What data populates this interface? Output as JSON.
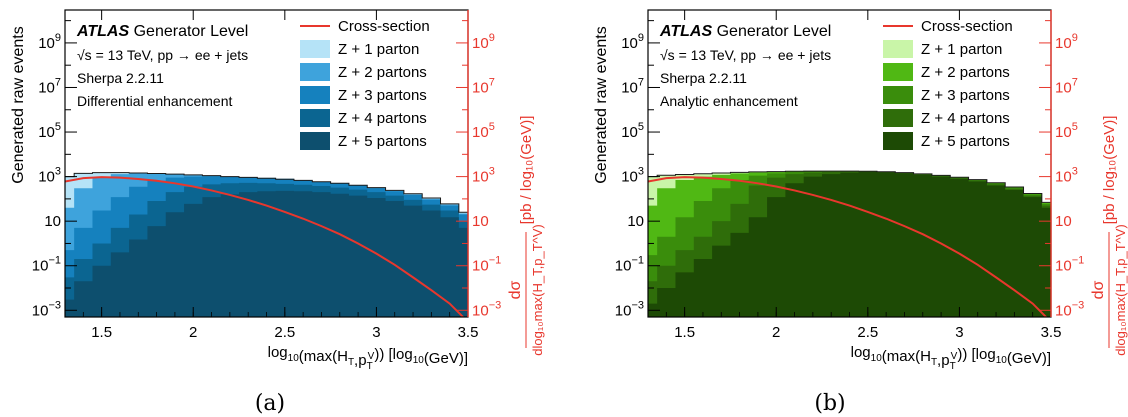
{
  "caption_a": "(a)",
  "caption_b": "(b)",
  "chart_data": [
    {
      "type": "area",
      "y_scale": "log",
      "xlim": [
        1.3,
        3.5
      ],
      "ylim_left": [
        0.0005,
        30000000000
      ],
      "ylim_right": [
        0.0005,
        30000000000
      ],
      "xlabel": "log₁₀(max(H_T,p_T^V)) [log₁₀(GeV)]",
      "ylabel": "Generated raw events",
      "ylabel_right": "dσ / dlog₁₀ max(H_T,p_T^V) [pb / log₁₀(GeV)]",
      "x_ticks": [
        "1.5",
        "2",
        "2.5",
        "3",
        "3.5"
      ],
      "y_ticks": [
        "10⁻³",
        "10⁻¹",
        "10",
        "10³",
        "10⁵",
        "10⁷",
        "10⁹"
      ],
      "y_ticks_right": [
        "10⁻³",
        "10⁻¹",
        "10",
        "10³",
        "10⁵",
        "10⁷",
        "10⁹"
      ],
      "annotation": {
        "experiment": "ATLAS",
        "level": "Generator Level",
        "energy": "√s = 13 TeV, pp → ee + jets",
        "generator": "Sherpa 2.2.11",
        "method": "Differential enhancement"
      },
      "legend_position": "top-right",
      "x": [
        1.3,
        1.4,
        1.5,
        1.6,
        1.7,
        1.8,
        1.9,
        2.0,
        2.1,
        2.2,
        2.3,
        2.4,
        2.5,
        2.6,
        2.7,
        2.8,
        2.9,
        3.0,
        3.1,
        3.2,
        3.3,
        3.4,
        3.5
      ],
      "cross_section": {
        "name": "Cross-section",
        "color": "#e8372d",
        "values": [
          600,
          850,
          950,
          900,
          780,
          650,
          500,
          360,
          240,
          150,
          90,
          50,
          26,
          13,
          6,
          2.6,
          1.0,
          0.35,
          0.11,
          0.03,
          0.008,
          0.002,
          0.0003
        ]
      },
      "series": [
        {
          "name": "Z + 5 partons",
          "color": "#0d4f6e",
          "values": [
            0.003,
            0.02,
            0.1,
            0.4,
            1.5,
            6,
            25,
            60,
            120,
            160,
            200,
            220,
            230,
            220,
            200,
            170,
            140,
            110,
            80,
            50,
            30,
            15,
            5
          ]
        },
        {
          "name": "Z + 4 partons",
          "color": "#0b6591",
          "values": [
            0.03,
            0.2,
            1,
            5,
            20,
            80,
            200,
            350,
            450,
            500,
            520,
            500,
            470,
            430,
            380,
            320,
            260,
            200,
            140,
            90,
            55,
            30,
            10
          ]
        },
        {
          "name": "Z + 3 partons",
          "color": "#1581be",
          "values": [
            0.5,
            5,
            30,
            120,
            350,
            650,
            900,
            1000,
            1050,
            1020,
            950,
            880,
            800,
            700,
            600,
            500,
            400,
            300,
            220,
            150,
            90,
            50,
            20
          ]
        },
        {
          "name": "Z + 2 partons",
          "color": "#3ea3dc",
          "values": [
            40,
            300,
            900,
            1300,
            1400,
            1350,
            1250,
            1150,
            1050,
            950,
            870,
            800,
            720,
            640,
            560,
            480,
            400,
            310,
            230,
            160,
            100,
            55,
            22
          ]
        },
        {
          "name": "Z + 1 parton",
          "color": "#b5e3f7",
          "values": [
            1000,
            1400,
            1500,
            1500,
            1450,
            1380,
            1300,
            1200,
            1100,
            1000,
            920,
            840,
            760,
            680,
            590,
            500,
            410,
            320,
            240,
            170,
            110,
            60,
            25
          ]
        }
      ]
    },
    {
      "type": "area",
      "y_scale": "log",
      "xlim": [
        1.3,
        3.5
      ],
      "ylim_left": [
        0.0005,
        30000000000
      ],
      "ylim_right": [
        0.0005,
        30000000000
      ],
      "xlabel": "log₁₀(max(H_T,p_T^V)) [log₁₀(GeV)]",
      "ylabel": "Generated raw events",
      "ylabel_right": "dσ / dlog₁₀ max(H_T,p_T^V) [pb / log₁₀(GeV)]",
      "x_ticks": [
        "1.5",
        "2",
        "2.5",
        "3",
        "3.5"
      ],
      "y_ticks": [
        "10⁻³",
        "10⁻¹",
        "10",
        "10³",
        "10⁵",
        "10⁷",
        "10⁹"
      ],
      "y_ticks_right": [
        "10⁻³",
        "10⁻¹",
        "10",
        "10³",
        "10⁵",
        "10⁷",
        "10⁹"
      ],
      "annotation": {
        "experiment": "ATLAS",
        "level": "Generator Level",
        "energy": "√s = 13 TeV, pp → ee + jets",
        "generator": "Sherpa 2.2.11",
        "method": "Analytic enhancement"
      },
      "legend_position": "top-right",
      "x": [
        1.3,
        1.4,
        1.5,
        1.6,
        1.7,
        1.8,
        1.9,
        2.0,
        2.1,
        2.2,
        2.3,
        2.4,
        2.5,
        2.6,
        2.7,
        2.8,
        2.9,
        3.0,
        3.1,
        3.2,
        3.3,
        3.4,
        3.5
      ],
      "cross_section": {
        "name": "Cross-section",
        "color": "#e8372d",
        "values": [
          600,
          850,
          950,
          900,
          780,
          650,
          500,
          360,
          240,
          150,
          90,
          50,
          26,
          13,
          6,
          2.6,
          1.0,
          0.35,
          0.11,
          0.03,
          0.008,
          0.002,
          0.0003
        ]
      },
      "series": [
        {
          "name": "Z + 5 partons",
          "color": "#1d4a05",
          "values": [
            0.002,
            0.01,
            0.05,
            0.2,
            0.8,
            3,
            15,
            120,
            500,
            1000,
            1300,
            1500,
            1600,
            1550,
            1400,
            1200,
            1000,
            800,
            600,
            400,
            250,
            120,
            40
          ]
        },
        {
          "name": "Z + 4 partons",
          "color": "#2f6d0a",
          "values": [
            0.02,
            0.1,
            0.5,
            2,
            10,
            60,
            400,
            900,
            1300,
            1500,
            1600,
            1650,
            1650,
            1600,
            1450,
            1250,
            1050,
            850,
            650,
            450,
            280,
            140,
            50
          ]
        },
        {
          "name": "Z + 3 partons",
          "color": "#3a8d0c",
          "values": [
            0.3,
            2,
            15,
            80,
            300,
            700,
            1100,
            1400,
            1600,
            1700,
            1750,
            1750,
            1700,
            1620,
            1480,
            1300,
            1100,
            900,
            700,
            500,
            320,
            160,
            60
          ]
        },
        {
          "name": "Z + 2 partons",
          "color": "#50b814",
          "values": [
            50,
            300,
            700,
            1000,
            1200,
            1400,
            1550,
            1650,
            1720,
            1750,
            1760,
            1750,
            1720,
            1650,
            1500,
            1320,
            1120,
            920,
            720,
            520,
            330,
            170,
            65
          ]
        },
        {
          "name": "Z + 1 parton",
          "color": "#c9f5a8",
          "values": [
            1000,
            1150,
            1250,
            1350,
            1450,
            1550,
            1620,
            1680,
            1730,
            1760,
            1770,
            1760,
            1730,
            1660,
            1510,
            1330,
            1130,
            930,
            730,
            530,
            340,
            175,
            70
          ]
        }
      ]
    }
  ]
}
